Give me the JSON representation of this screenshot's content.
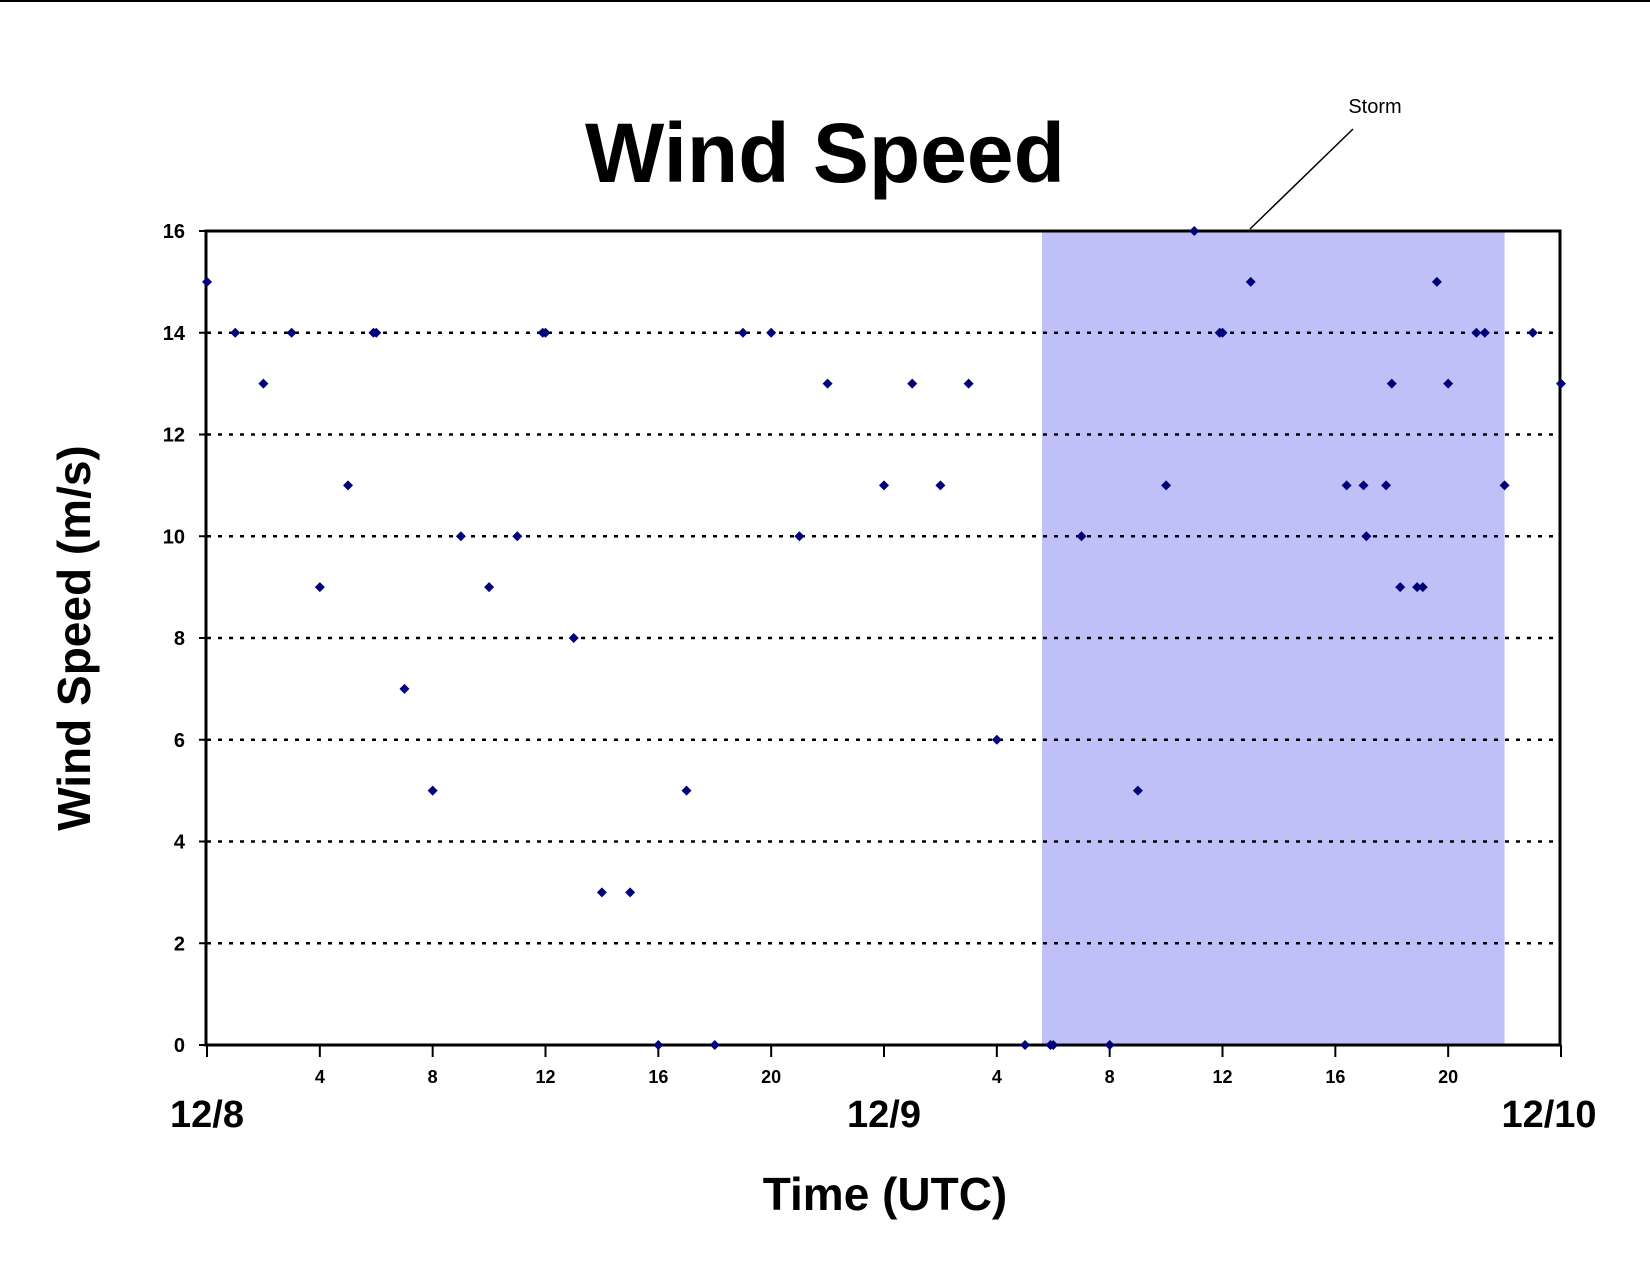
{
  "chart_data": {
    "type": "scatter",
    "title": "Wind Speed",
    "xlabel": "Time (UTC)",
    "ylabel": "Wind Speed (m/s)",
    "ylim": [
      0,
      16
    ],
    "y_ticks": [
      "0",
      "2",
      "4",
      "6",
      "8",
      "10",
      "12",
      "14",
      "16"
    ],
    "x_hour_ticks": [
      "4",
      "8",
      "12",
      "16",
      "20",
      "4",
      "8",
      "12",
      "16",
      "20"
    ],
    "x_day_ticks": [
      "12/8",
      "12/9",
      "12/10"
    ],
    "grid": "horizontal dotted",
    "marker_color": "#00007a",
    "shade_color": "#c0c0f8",
    "annotation": {
      "text": "Storm"
    },
    "storm_span_hours": [
      29.6,
      46.0
    ],
    "hours_range": [
      0,
      48
    ],
    "points": [
      [
        0,
        15
      ],
      [
        1,
        14
      ],
      [
        2,
        13
      ],
      [
        3,
        14
      ],
      [
        4,
        9
      ],
      [
        5,
        11
      ],
      [
        5.9,
        14
      ],
      [
        6,
        14
      ],
      [
        7,
        7
      ],
      [
        8,
        5
      ],
      [
        9,
        10
      ],
      [
        10,
        9
      ],
      [
        11,
        10
      ],
      [
        11.9,
        14
      ],
      [
        12,
        14
      ],
      [
        13,
        8
      ],
      [
        14,
        3
      ],
      [
        15,
        3
      ],
      [
        16,
        0
      ],
      [
        17,
        5
      ],
      [
        18,
        0
      ],
      [
        19,
        14
      ],
      [
        20,
        14
      ],
      [
        21,
        10
      ],
      [
        22,
        13
      ],
      [
        24,
        11
      ],
      [
        25,
        13
      ],
      [
        26,
        11
      ],
      [
        27,
        13
      ],
      [
        28,
        6
      ],
      [
        29,
        0
      ],
      [
        29.9,
        0
      ],
      [
        30,
        0
      ],
      [
        31,
        10
      ],
      [
        32,
        0
      ],
      [
        33,
        5
      ],
      [
        34,
        11
      ],
      [
        35,
        16
      ],
      [
        35.9,
        14
      ],
      [
        36,
        14
      ],
      [
        37,
        15
      ],
      [
        40.4,
        11
      ],
      [
        41,
        11
      ],
      [
        41.1,
        10
      ],
      [
        41.8,
        11
      ],
      [
        42,
        13
      ],
      [
        42.3,
        9
      ],
      [
        42.9,
        9
      ],
      [
        43.1,
        9
      ],
      [
        43.6,
        15
      ],
      [
        44,
        13
      ],
      [
        45,
        14
      ],
      [
        45.3,
        14
      ],
      [
        46,
        11
      ],
      [
        47,
        14
      ],
      [
        48,
        13
      ]
    ]
  }
}
